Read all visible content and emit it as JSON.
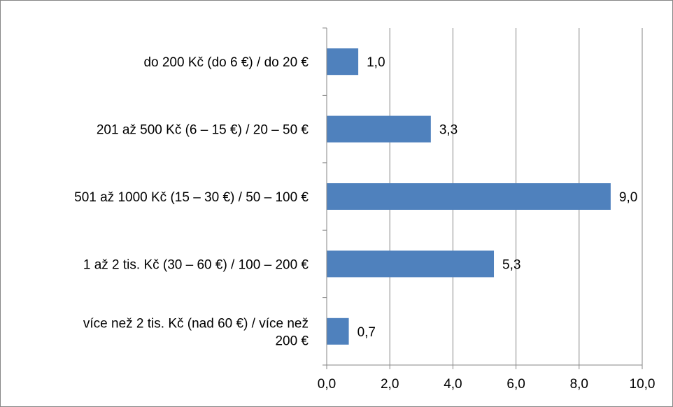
{
  "chart_data": {
    "type": "bar",
    "orientation": "horizontal",
    "categories": [
      "do 200 Kč (do 6 €) / do 20 €",
      "201 až 500 Kč (6 – 15 €) / 20 – 50 €",
      "501 až 1000 Kč (15 – 30 €) / 50 – 100 €",
      "1 až 2 tis. Kč (30 – 60 €) / 100 – 200 €",
      "více než 2 tis. Kč (nad 60 €) / více než 200 €"
    ],
    "category_label_lines": [
      [
        "do 200 Kč (do 6 €) / do 20 €"
      ],
      [
        "201 až 500 Kč (6 – 15 €) / 20 – 50 €"
      ],
      [
        "501 až 1000 Kč (15 – 30 €) / 50 – 100 €"
      ],
      [
        "1 až 2 tis. Kč (30 – 60 €) / 100 – 200 €"
      ],
      [
        "více než 2 tis. Kč (nad 60 €) / více než",
        "200 €"
      ]
    ],
    "values": [
      1.0,
      3.3,
      9.0,
      5.3,
      0.7
    ],
    "data_labels": [
      "1,0",
      "3,3",
      "9,0",
      "5,3",
      "0,7"
    ],
    "xlim": [
      0,
      10
    ],
    "x_ticks": [
      0,
      2,
      4,
      6,
      8,
      10
    ],
    "x_tick_labels": [
      "0,0",
      "2,0",
      "4,0",
      "6,0",
      "8,0",
      "10,0"
    ],
    "grid": true,
    "bar_color": "#4f81bd",
    "grid_color": "#868686"
  }
}
